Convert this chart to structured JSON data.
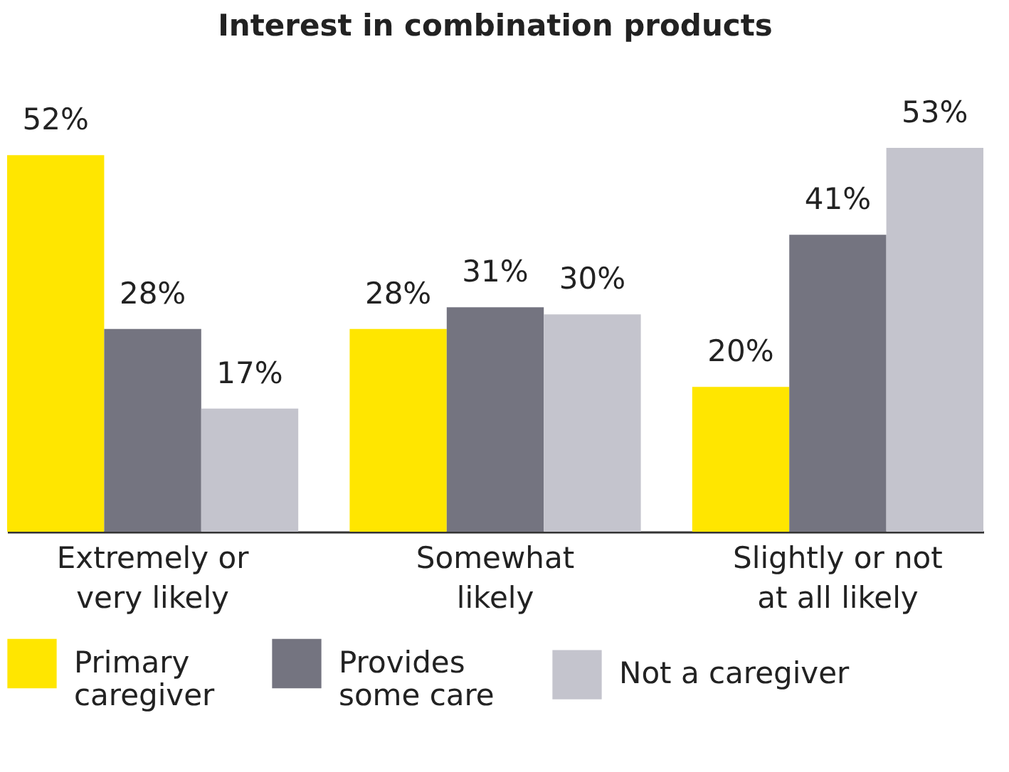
{
  "chart_data": {
    "type": "bar",
    "title": "Interest in combination products",
    "categories": [
      "Extremely or very likely",
      "Somewhat likely",
      "Slightly or not at all likely"
    ],
    "series": [
      {
        "name": "Primary caregiver",
        "color": "#ffe600",
        "values": [
          52,
          28,
          20
        ],
        "value_labels": [
          "52%",
          "28%",
          "20%"
        ]
      },
      {
        "name": "Provides some care",
        "color": "#747480",
        "values": [
          28,
          31,
          41
        ],
        "value_labels": [
          "28%",
          "31%",
          "41%"
        ]
      },
      {
        "name": "Not a caregiver",
        "color": "#c4c4cd",
        "values": [
          17,
          30,
          53
        ],
        "value_labels": [
          "17%",
          "30%",
          "53%"
        ]
      }
    ],
    "legend": "bottom",
    "tick_labels": "x"
  }
}
